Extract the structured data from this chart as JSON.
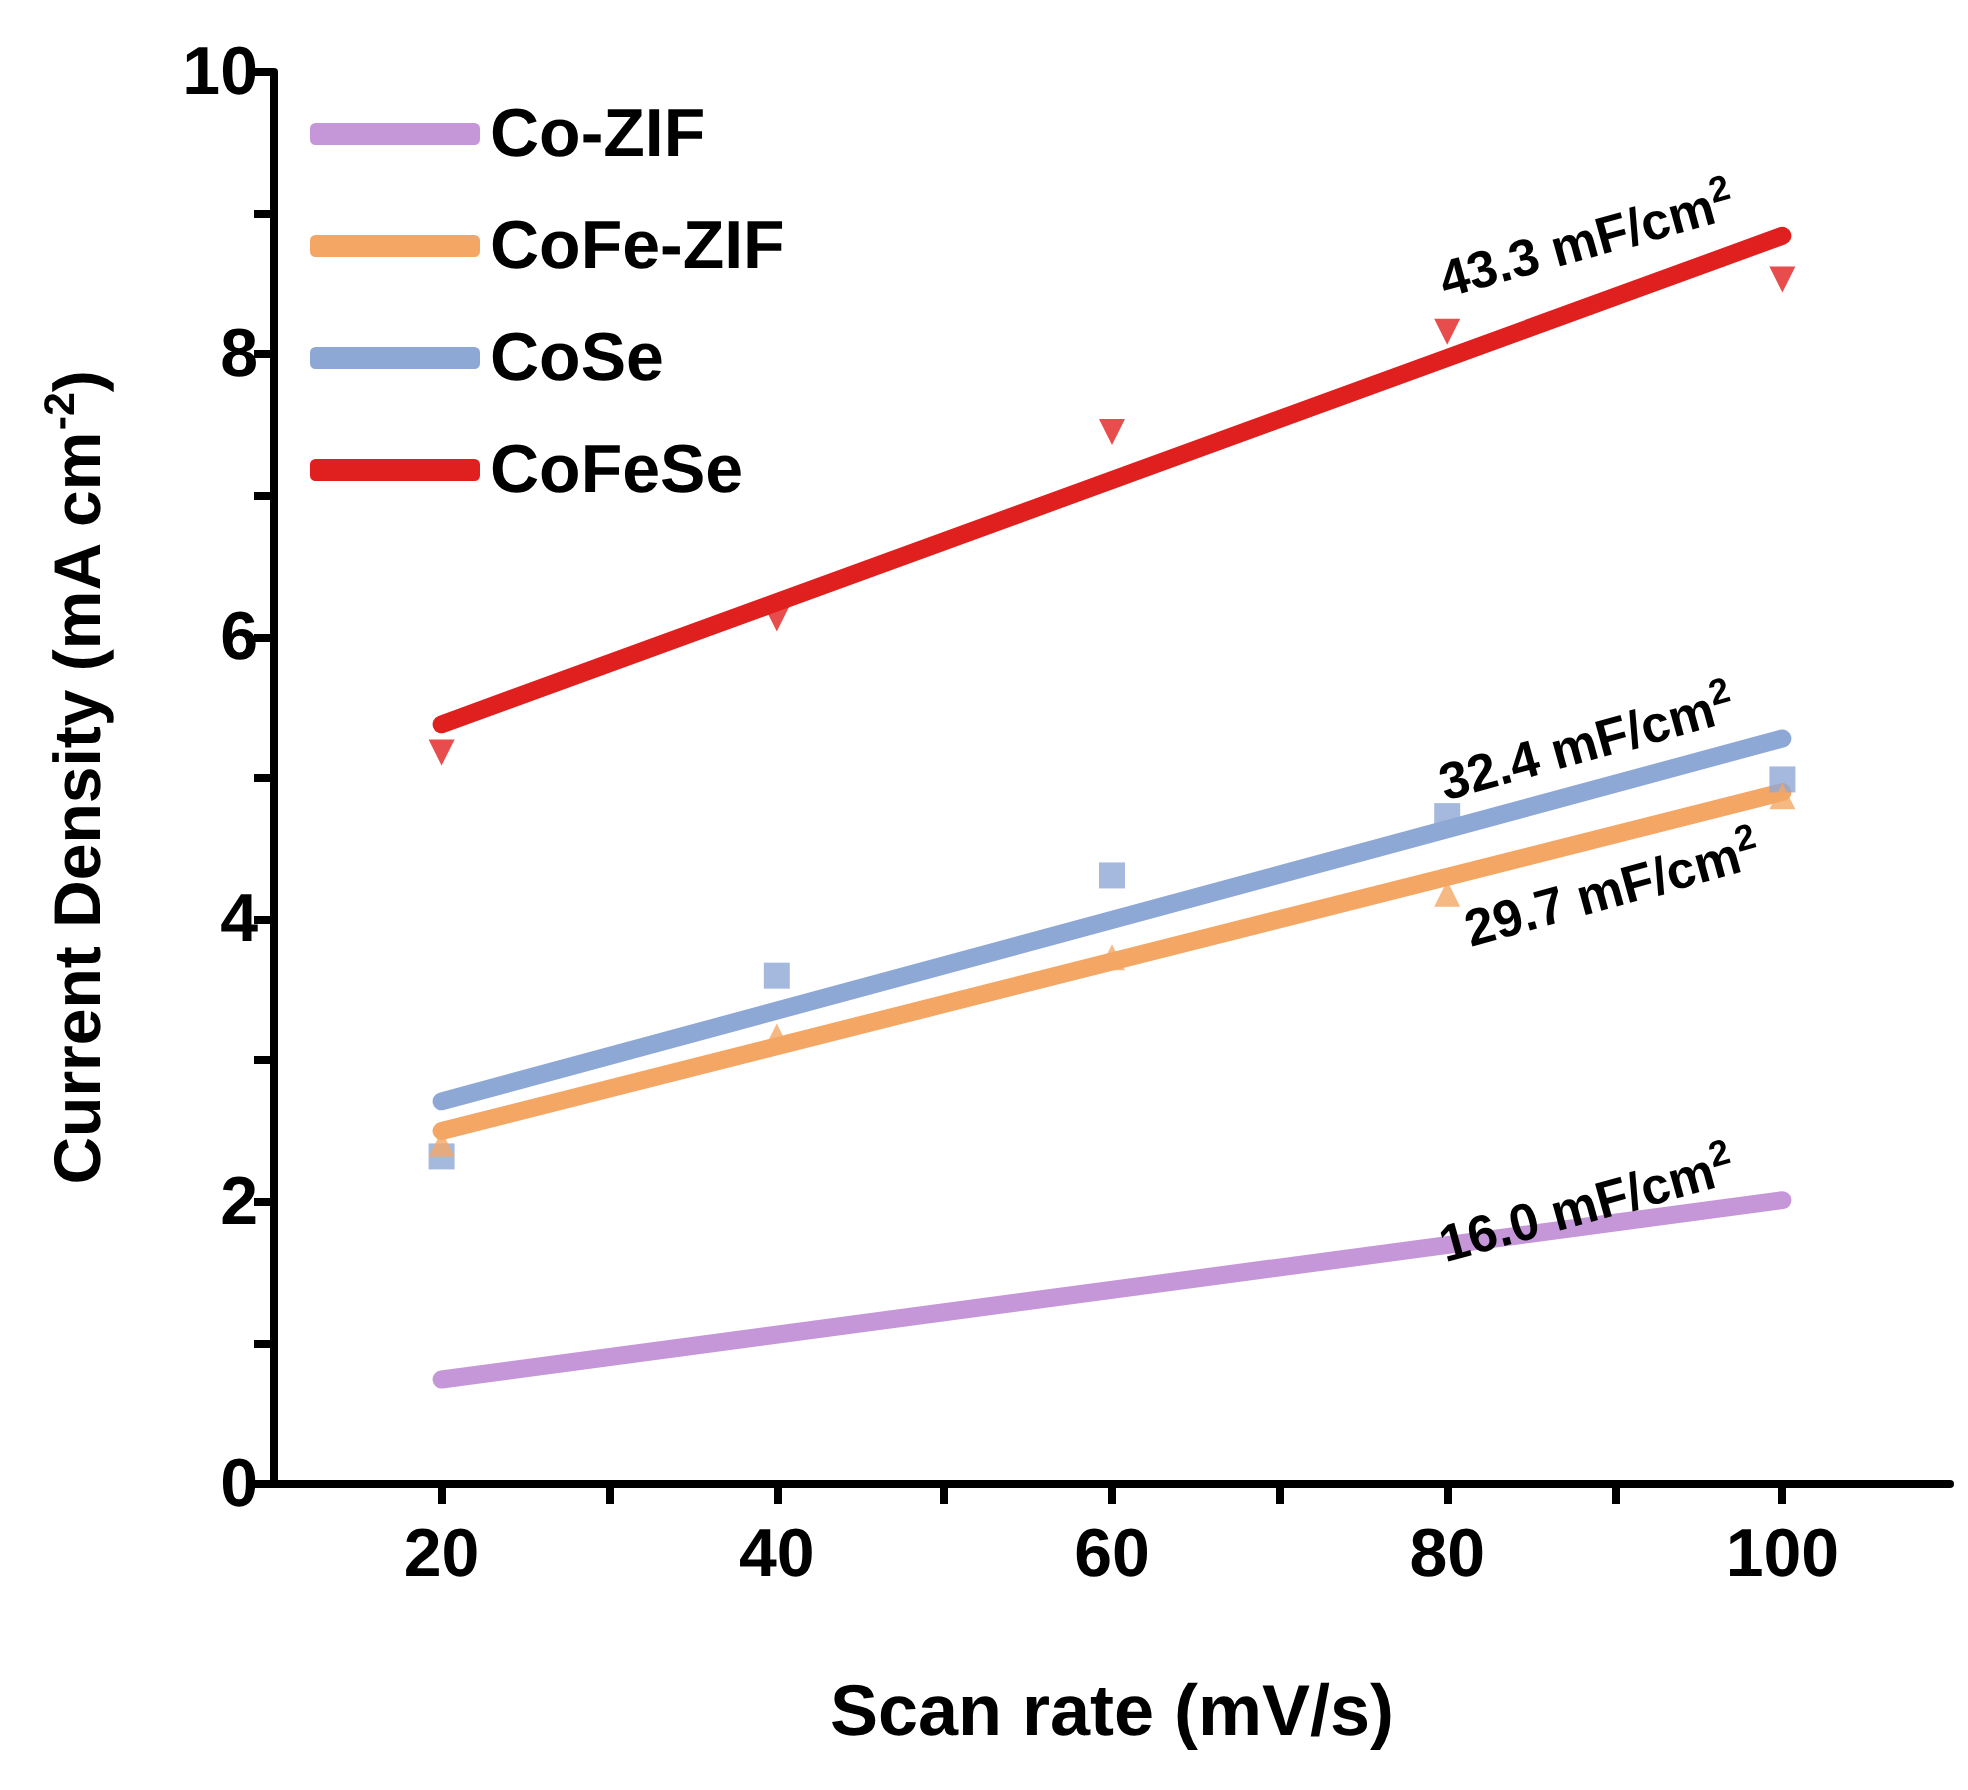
{
  "chart_data": {
    "type": "line",
    "xlabel": "Scan rate (mV/s)",
    "ylabel": "Current Density (mA cm$^{-2}$)",
    "xlim": [
      10,
      110
    ],
    "xticks": [
      20,
      {
        "value": 30,
        "label": null
      },
      40,
      {
        "value": 50,
        "label": null
      },
      60,
      {
        "value": 70,
        "label": null
      },
      80,
      {
        "value": 90,
        "label": null
      },
      100
    ],
    "ylim": [
      0,
      10
    ],
    "yticks": [
      0,
      {
        "value": 1,
        "label": null
      },
      2,
      {
        "value": 3,
        "label": null
      },
      4,
      {
        "value": 5,
        "label": null
      },
      6,
      {
        "value": 7,
        "label": null
      },
      8,
      {
        "value": 9,
        "label": null
      },
      10
    ],
    "grid": false,
    "legend": "top left",
    "line_style": "solid",
    "series": [
      {
        "type": "line",
        "name": "Co-ZIF",
        "color": "#c597d8",
        "x": [
          20,
          100
        ],
        "values": [
          0.74,
          2.01
        ],
        "marker": "none"
      },
      {
        "type": "line",
        "name": "CoFe-ZIF",
        "color": "#f4a765",
        "x": [
          20,
          100
        ],
        "values": [
          2.5,
          4.9
        ],
        "marker": "none"
      },
      {
        "type": "line",
        "name": "CoSe",
        "color": "#8ea8d6",
        "x": [
          20,
          100
        ],
        "values": [
          2.71,
          5.28
        ],
        "marker": "none"
      },
      {
        "type": "line",
        "name": "CoFeSe",
        "color": "#e0201f",
        "x": [
          20,
          100
        ],
        "values": [
          5.38,
          8.84
        ],
        "marker": "none"
      },
      {
        "type": "scatter",
        "color": "#f4a765",
        "x": [
          20,
          40,
          60,
          80,
          100
        ],
        "values": [
          2.41,
          3.17,
          3.73,
          4.18,
          4.87
        ],
        "marker": "triangle"
      },
      {
        "type": "scatter",
        "color": "#8ea8d6",
        "x": [
          20,
          40,
          60,
          80,
          100
        ],
        "values": [
          2.32,
          3.6,
          4.31,
          4.73,
          4.99
        ],
        "marker": "square"
      },
      {
        "type": "scatter",
        "color": "#e0201f",
        "x": [
          20,
          40,
          60,
          80,
          100
        ],
        "values": [
          5.18,
          6.13,
          7.45,
          8.16,
          8.53
        ],
        "marker": "triangle-down"
      }
    ],
    "annotations": [
      "43.3 mF/cm$^{2}$",
      "32.4 mF/cm$^{2}$",
      "29.7 mF/cm$^{2}$",
      "16.0 mF/cm$^{2}$"
    ]
  }
}
